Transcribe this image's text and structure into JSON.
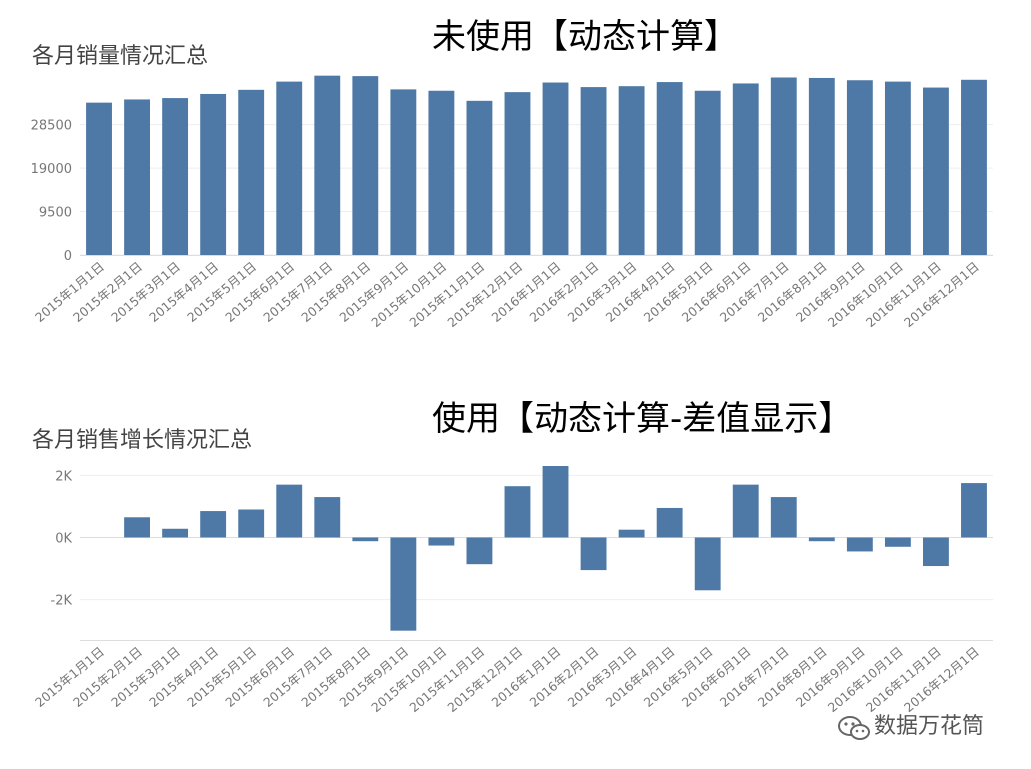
{
  "chart_data": [
    {
      "type": "bar",
      "heading": "未使用【动态计算】",
      "title": "各月销量情况汇总",
      "categories": [
        "2015年1月1日",
        "2015年2月1日",
        "2015年3月1日",
        "2015年4月1日",
        "2015年5月1日",
        "2015年6月1日",
        "2015年7月1日",
        "2015年8月1日",
        "2015年9月1日",
        "2015年10月1日",
        "2015年11月1日",
        "2015年12月1日",
        "2016年1月1日",
        "2016年2月1日",
        "2016年3月1日",
        "2016年4月1日",
        "2016年5月1日",
        "2016年6月1日",
        "2016年7月1日",
        "2016年8月1日",
        "2016年9月1日",
        "2016年10月1日",
        "2016年11月1日",
        "2016年12月1日"
      ],
      "values": [
        33300,
        34000,
        34300,
        35200,
        36100,
        37900,
        39200,
        39100,
        36200,
        35900,
        33700,
        35600,
        37700,
        36700,
        36900,
        37800,
        35900,
        37500,
        38800,
        38700,
        38200,
        37900,
        36600,
        38300
      ],
      "yticks": [
        "28500",
        "19000",
        "9500",
        "0"
      ],
      "ytick_values": [
        28500,
        19000,
        9500,
        0
      ],
      "ylim": [
        0,
        40000
      ],
      "xlabel": "",
      "ylabel": "",
      "color": "#4e79a7",
      "grid": true
    },
    {
      "type": "bar",
      "heading": "使用【动态计算-差值显示】",
      "title": "各月销售增长情况汇总",
      "categories": [
        "2015年1月1日",
        "2015年2月1日",
        "2015年3月1日",
        "2015年4月1日",
        "2015年5月1日",
        "2015年6月1日",
        "2015年7月1日",
        "2015年8月1日",
        "2015年9月1日",
        "2015年10月1日",
        "2015年11月1日",
        "2015年12月1日",
        "2016年1月1日",
        "2016年2月1日",
        "2016年3月1日",
        "2016年4月1日",
        "2016年5月1日",
        "2016年6月1日",
        "2016年7月1日",
        "2016年8月1日",
        "2016年9月1日",
        "2016年10月1日",
        "2016年11月1日",
        "2016年12月1日"
      ],
      "values": [
        0,
        650,
        280,
        850,
        900,
        1700,
        1300,
        -120,
        -3000,
        -260,
        -860,
        1650,
        2300,
        -1050,
        250,
        950,
        -1700,
        1700,
        1300,
        -120,
        -450,
        -300,
        -920,
        1750
      ],
      "yticks": [
        "2K",
        "0K",
        "-2K"
      ],
      "ytick_values": [
        2000,
        0,
        -2000
      ],
      "ylim": [
        -3300,
        2300
      ],
      "xlabel": "",
      "ylabel": "",
      "color": "#4e79a7",
      "grid": true
    }
  ],
  "watermark": {
    "text": "数据万花筒",
    "icon": "wechat-icon"
  }
}
